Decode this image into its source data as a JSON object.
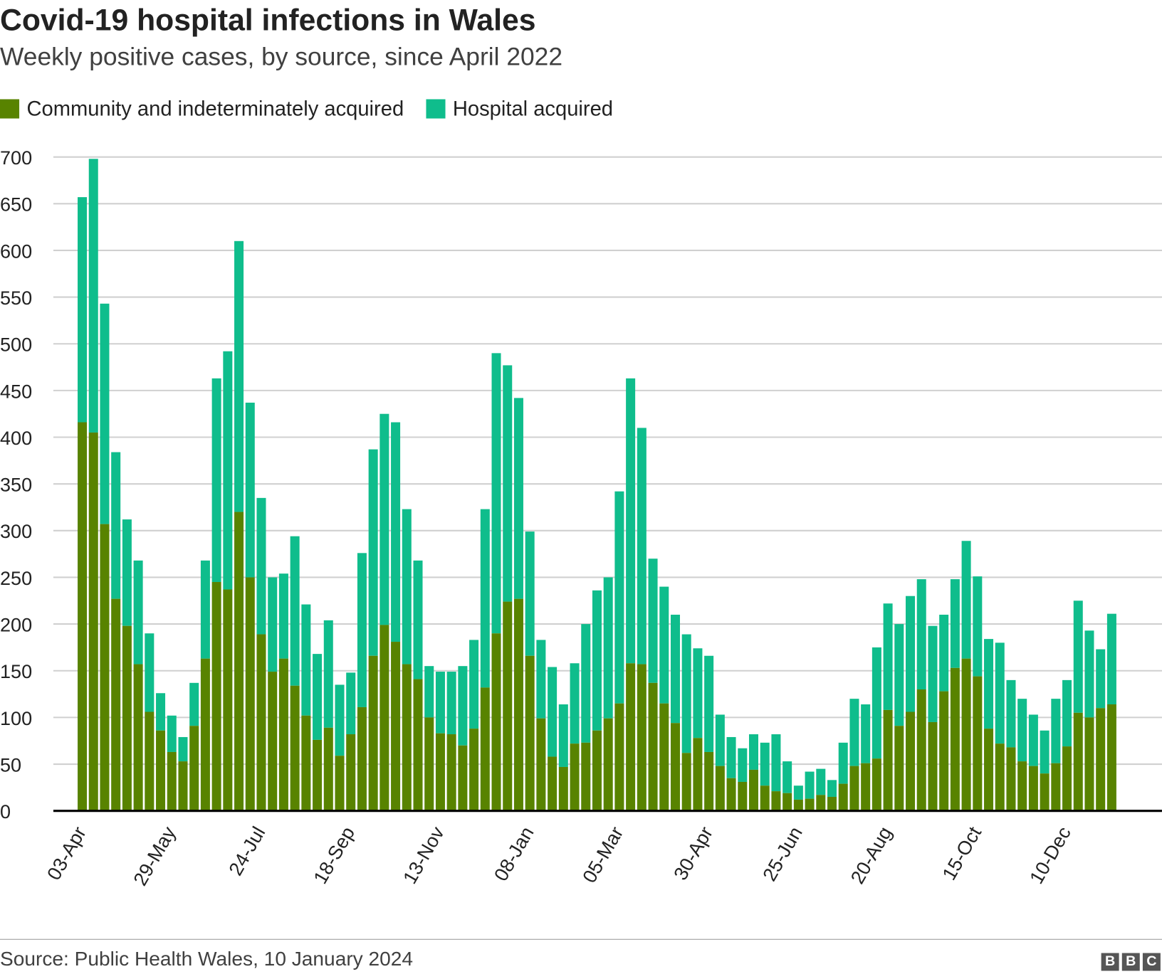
{
  "title": "Covid-19 hospital infections in Wales",
  "subtitle": "Weekly positive cases, by source, since April 2022",
  "source": "Source: Public Health Wales, 10 January 2024",
  "logo": [
    "B",
    "B",
    "C"
  ],
  "chart_data": {
    "type": "bar",
    "stacked": true,
    "title": "Covid-19 hospital infections in Wales",
    "xlabel": "",
    "ylabel": "",
    "ylim": [
      0,
      700
    ],
    "yticks": [
      0,
      50,
      100,
      150,
      200,
      250,
      300,
      350,
      400,
      450,
      500,
      550,
      600,
      650,
      700
    ],
    "grid": true,
    "legend_placement": "top-left",
    "xtick_labels": [
      "03-Apr",
      "29-May",
      "24-Jul",
      "18-Sep",
      "13-Nov",
      "08-Jan",
      "05-Mar",
      "30-Apr",
      "25-Jun",
      "20-Aug",
      "15-Oct",
      "10-Dec"
    ],
    "xtick_every": 8,
    "series": [
      {
        "name": "Community and indeterminately acquired",
        "color": "#588300",
        "values": [
          416,
          405,
          307,
          227,
          198,
          157,
          106,
          86,
          63,
          53,
          91,
          163,
          245,
          237,
          320,
          250,
          189,
          149,
          163,
          134,
          102,
          76,
          89,
          59,
          82,
          111,
          166,
          199,
          181,
          157,
          141,
          100,
          83,
          82,
          70,
          88,
          132,
          190,
          224,
          227,
          166,
          99,
          58,
          47,
          72,
          73,
          86,
          99,
          115,
          158,
          157,
          137,
          115,
          94,
          62,
          78,
          63,
          48,
          35,
          31,
          44,
          27,
          21,
          19,
          12,
          13,
          17,
          15,
          29,
          48,
          51,
          56,
          108,
          91,
          106,
          130,
          95,
          128,
          153,
          163,
          144,
          88,
          72,
          68,
          53,
          48,
          40,
          51,
          69,
          105,
          100,
          110,
          114
        ]
      },
      {
        "name": "Hospital acquired",
        "color": "#0fbd8c",
        "totals": [
          657,
          698,
          543,
          384,
          312,
          268,
          190,
          126,
          102,
          79,
          137,
          268,
          463,
          492,
          610,
          437,
          335,
          250,
          254,
          294,
          221,
          168,
          204,
          135,
          148,
          276,
          387,
          425,
          416,
          323,
          268,
          155,
          149,
          149,
          155,
          183,
          323,
          490,
          477,
          442,
          299,
          183,
          154,
          114,
          158,
          200,
          236,
          250,
          342,
          463,
          410,
          270,
          240,
          210,
          189,
          174,
          166,
          103,
          79,
          67,
          82,
          73,
          82,
          53,
          27,
          42,
          45,
          33,
          73,
          120,
          114,
          175,
          222,
          200,
          230,
          248,
          198,
          210,
          248,
          289,
          251,
          184,
          180,
          140,
          120,
          103,
          86,
          120,
          140,
          225,
          193,
          173,
          211
        ]
      }
    ]
  }
}
